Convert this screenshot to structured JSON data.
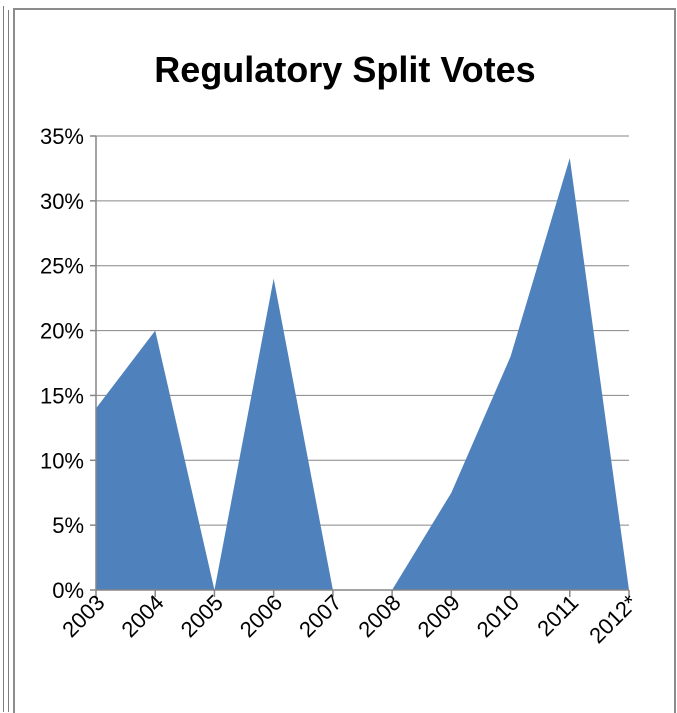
{
  "chart_data": {
    "type": "area",
    "title": "Regulatory Split Votes",
    "xlabel": "",
    "ylabel": "",
    "categories": [
      "2003",
      "2004",
      "2005",
      "2006",
      "2007",
      "2008",
      "2009",
      "2010",
      "2011",
      "2012*"
    ],
    "series": [
      {
        "values": [
          14,
          20,
          0,
          24,
          0,
          0,
          7.5,
          18,
          33.3,
          0
        ]
      }
    ],
    "ylim": [
      0,
      35
    ],
    "yticks": [
      0,
      5,
      10,
      15,
      20,
      25,
      30,
      35
    ],
    "ytick_labels": [
      "0%",
      "5%",
      "10%",
      "15%",
      "20%",
      "25%",
      "30%",
      "35%"
    ],
    "grid": "horizontal",
    "legend": "none",
    "colors": {
      "area": "#4f81bd",
      "gridline": "#868686",
      "axis": "#868686"
    }
  }
}
